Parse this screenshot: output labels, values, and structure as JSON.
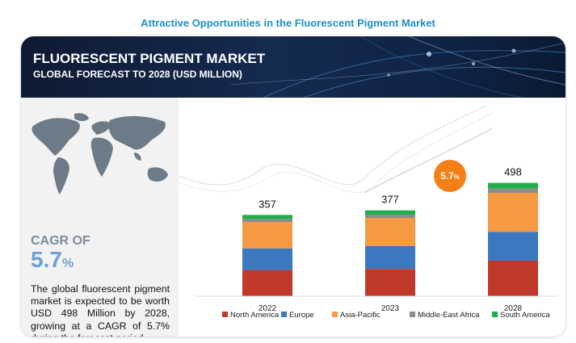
{
  "page_title": "Attractive Opportunities in the Fluorescent Pigment Market",
  "banner": {
    "title": "FLUORESCENT PIGMENT MARKET",
    "subtitle": "GLOBAL FORECAST TO 2028 (USD MILLION)"
  },
  "left_panel": {
    "cagr_label": "CAGR OF",
    "cagr_value": "5.7",
    "cagr_unit": "%",
    "description": "The global fluorescent pigment market is expected to be worth USD 498 Million by 2028, growing at a CAGR of 5.7% during the forecast period."
  },
  "chart_data": {
    "type": "bar",
    "stacked": true,
    "categories": [
      "2022",
      "2023",
      "2028"
    ],
    "totals": [
      357,
      377,
      498
    ],
    "total_labels": [
      "357",
      "377",
      "498"
    ],
    "series": [
      {
        "name": "North America",
        "color": "#c0392b",
        "values": [
          115,
          120,
          156
        ]
      },
      {
        "name": "Europe",
        "color": "#3b78c0",
        "values": [
          95,
          100,
          127
        ]
      },
      {
        "name": "Asia-Pacific",
        "color": "#f59a42",
        "values": [
          116,
          124,
          171
        ]
      },
      {
        "name": "Middle-East Africa",
        "color": "#8c8c8c",
        "values": [
          13,
          14,
          19
        ]
      },
      {
        "name": "South America",
        "color": "#21ad4b",
        "values": [
          18,
          19,
          25
        ]
      }
    ],
    "annotation": {
      "text": "5.7%",
      "value": "5.7",
      "unit": "%",
      "color": "#f57f17"
    },
    "ylim": [
      0,
      600
    ],
    "legend_position": "bottom",
    "grid": false
  }
}
